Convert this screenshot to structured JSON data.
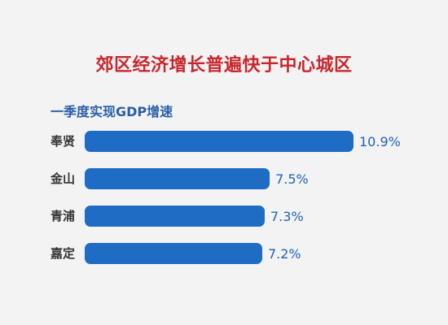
{
  "chart_data": {
    "type": "bar",
    "orientation": "horizontal",
    "title": "郊区经济增长普遍快于中心城区",
    "subtitle": "一季度实现GDP增速",
    "categories": [
      "奉贤",
      "金山",
      "青浦",
      "嘉定"
    ],
    "values": [
      10.9,
      7.5,
      7.3,
      7.2
    ],
    "value_labels": [
      "10.9%",
      "7.5%",
      "7.3%",
      "7.2%"
    ],
    "xlim": [
      0,
      10.9
    ],
    "grid": false,
    "legend": "none",
    "colors": {
      "bar": "#1f6cc4",
      "title": "#c8262d",
      "subtitle": "#2a5fa8",
      "value_label": "#1f63b8",
      "category_label": "#333333",
      "background": "#f3f3f3"
    }
  }
}
